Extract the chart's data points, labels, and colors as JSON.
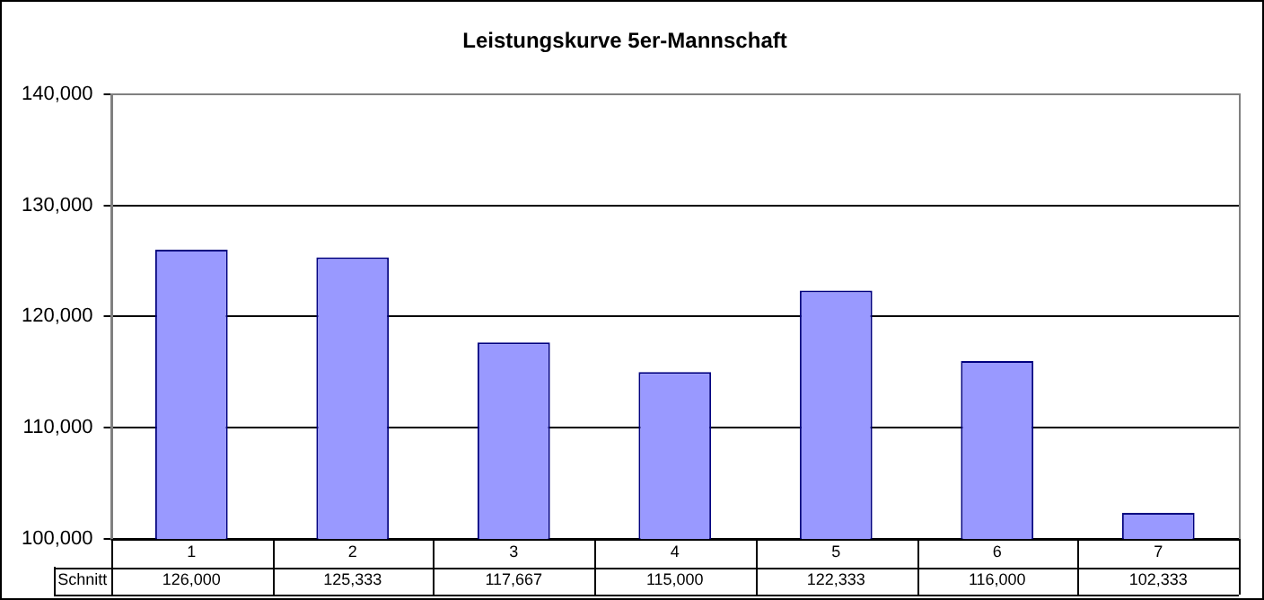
{
  "chart_data": {
    "type": "bar",
    "title": "Leistungskurve 5er-Mannschaft",
    "categories": [
      "1",
      "2",
      "3",
      "4",
      "5",
      "6",
      "7"
    ],
    "series": [
      {
        "name": "Schnitt",
        "color": "#9999ff",
        "values": [
          126000,
          125333,
          117667,
          115000,
          122333,
          116000,
          102333
        ],
        "value_labels": [
          "126,000",
          "125,333",
          "117,667",
          "115,000",
          "122,333",
          "116,000",
          "102,333"
        ]
      }
    ],
    "ylim": [
      100000,
      140000
    ],
    "yticks": [
      {
        "value": 100000,
        "label": "100,000"
      },
      {
        "value": 110000,
        "label": "110,000"
      },
      {
        "value": 120000,
        "label": "120,000"
      },
      {
        "value": 130000,
        "label": "130,000"
      },
      {
        "value": 140000,
        "label": "140,000"
      }
    ],
    "grid": "y"
  }
}
